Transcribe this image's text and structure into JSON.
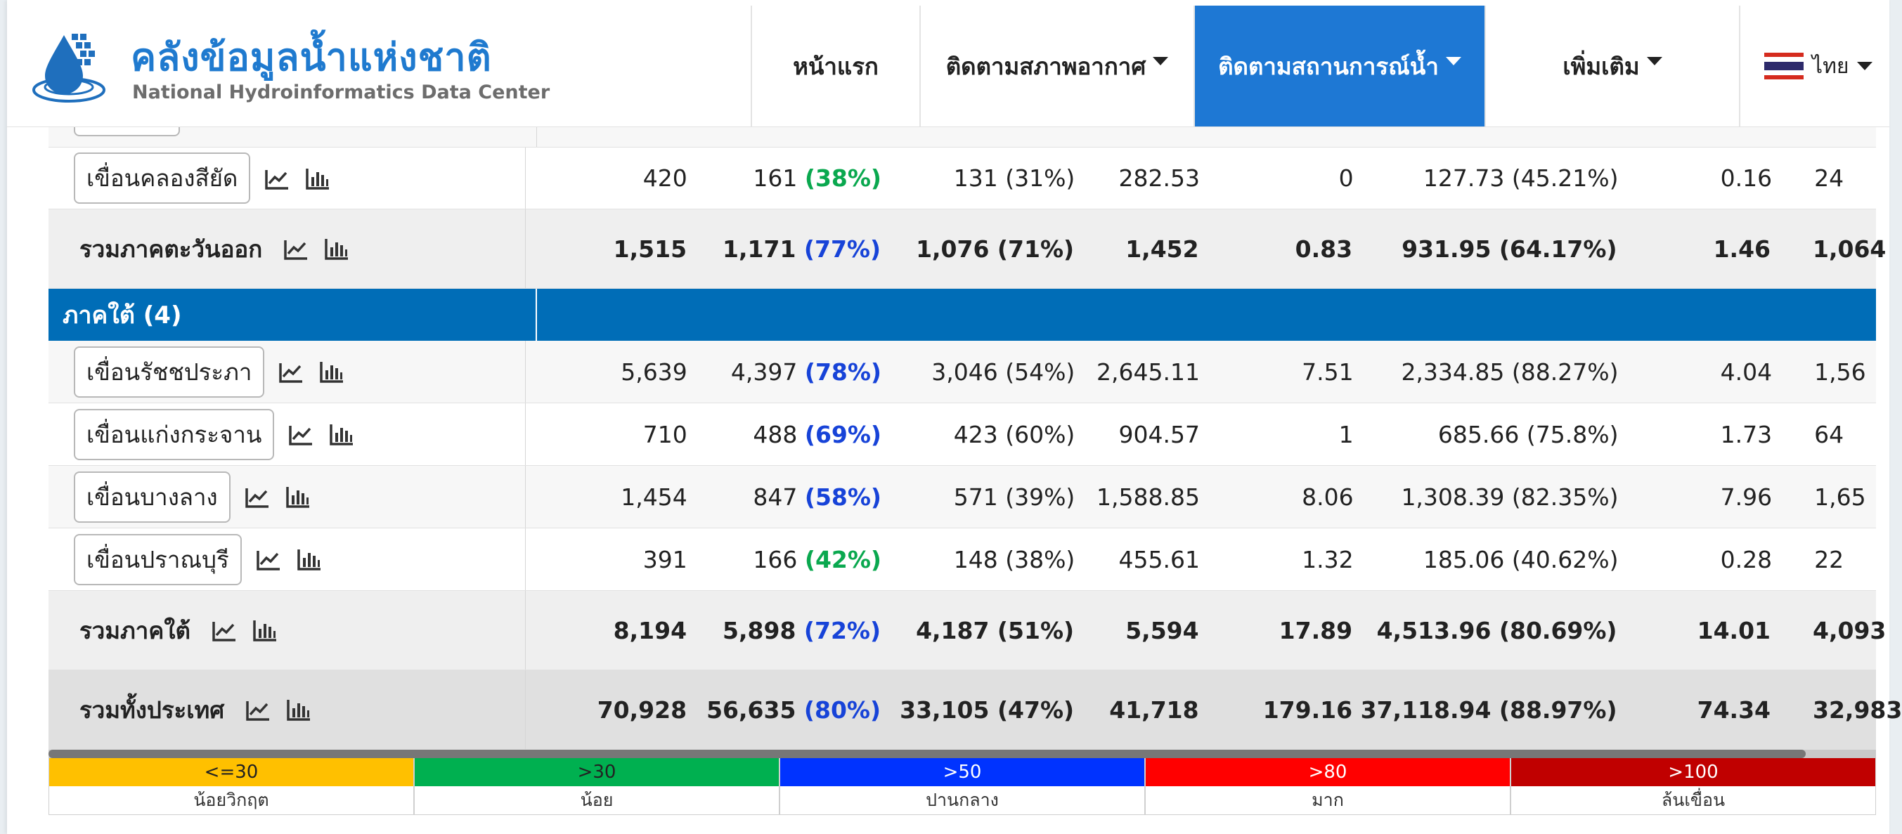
{
  "brand": {
    "title_th": "คลังข้อมูลน้ำแห่งชาติ",
    "title_en": "National Hydroinformatics Data Center"
  },
  "nav": {
    "items": [
      {
        "label": "หน้าแรก"
      },
      {
        "label": "ติดตามสภาพอากาศ"
      },
      {
        "label": "ติดตามสถานการณ์น้ำ"
      },
      {
        "label": "เพิ่มเติม"
      }
    ],
    "language": "ไทย"
  },
  "colors": {
    "accent": "#1e78d4",
    "region_header": "#006db7",
    "pct_green": "#0aa84f",
    "pct_blue": "#1743d8"
  },
  "rows": [
    {
      "type": "dam",
      "name": "เขื่อนคลองสียัด",
      "c1": "420",
      "c2n": "161",
      "c2p": "(38%)",
      "pctColor": "green",
      "c3": "131 (31%)",
      "c4": "282.53",
      "c5": "0",
      "c6": "127.73 (45.21%)",
      "c7": "0.16",
      "c8": "24"
    },
    {
      "type": "sum",
      "name": "รวมภาคตะวันออก",
      "c1": "1,515",
      "c2n": "1,171",
      "c2p": "(77%)",
      "pctColor": "blue",
      "c3": "1,076 (71%)",
      "c4": "1,452",
      "c5": "0.83",
      "c6": "931.95 (64.17%)",
      "c7": "1.46",
      "c8": "1,064"
    },
    {
      "type": "region",
      "name": "ภาคใต้ (4)"
    },
    {
      "type": "dam",
      "name": "เขื่อนรัชชประภา",
      "c1": "5,639",
      "c2n": "4,397",
      "c2p": "(78%)",
      "pctColor": "blue",
      "c3": "3,046 (54%)",
      "c4": "2,645.11",
      "c5": "7.51",
      "c6": "2,334.85 (88.27%)",
      "c7": "4.04",
      "c8": "1,56"
    },
    {
      "type": "dam",
      "name": "เขื่อนแก่งกระจาน",
      "c1": "710",
      "c2n": "488",
      "c2p": "(69%)",
      "pctColor": "blue",
      "c3": "423 (60%)",
      "c4": "904.57",
      "c5": "1",
      "c6": "685.66 (75.8%)",
      "c7": "1.73",
      "c8": "64"
    },
    {
      "type": "dam",
      "name": "เขื่อนบางลาง",
      "c1": "1,454",
      "c2n": "847",
      "c2p": "(58%)",
      "pctColor": "blue",
      "c3": "571 (39%)",
      "c4": "1,588.85",
      "c5": "8.06",
      "c6": "1,308.39 (82.35%)",
      "c7": "7.96",
      "c8": "1,65"
    },
    {
      "type": "dam",
      "name": "เขื่อนปราณบุรี",
      "c1": "391",
      "c2n": "166",
      "c2p": "(42%)",
      "pctColor": "green",
      "c3": "148 (38%)",
      "c4": "455.61",
      "c5": "1.32",
      "c6": "185.06 (40.62%)",
      "c7": "0.28",
      "c8": "22"
    },
    {
      "type": "sum",
      "name": "รวมภาคใต้",
      "c1": "8,194",
      "c2n": "5,898",
      "c2p": "(72%)",
      "pctColor": "blue",
      "c3": "4,187 (51%)",
      "c4": "5,594",
      "c5": "17.89",
      "c6": "4,513.96 (80.69%)",
      "c7": "14.01",
      "c8": "4,093"
    },
    {
      "type": "total",
      "name": "รวมทั้งประเทศ",
      "c1": "70,928",
      "c2n": "56,635",
      "c2p": "(80%)",
      "pctColor": "blue",
      "c3": "33,105 (47%)",
      "c4": "41,718",
      "c5": "179.16",
      "c6": "37,118.94 (88.97%)",
      "c7": "74.34",
      "c8": "32,983"
    }
  ],
  "legend": [
    {
      "range": "<=30",
      "label": "น้อยวิกฤต",
      "color": "#ffc000",
      "text": "#222222"
    },
    {
      "range": ">30",
      "label": "น้อย",
      "color": "#00b050",
      "text": "#222222"
    },
    {
      "range": ">50",
      "label": "ปานกลาง",
      "color": "#0033ff",
      "text": "#ffffff"
    },
    {
      "range": ">80",
      "label": "มาก",
      "color": "#ff0000",
      "text": "#ffffff"
    },
    {
      "range": ">100",
      "label": "ล้นเขื่อน",
      "color": "#c00000",
      "text": "#ffffff"
    }
  ]
}
